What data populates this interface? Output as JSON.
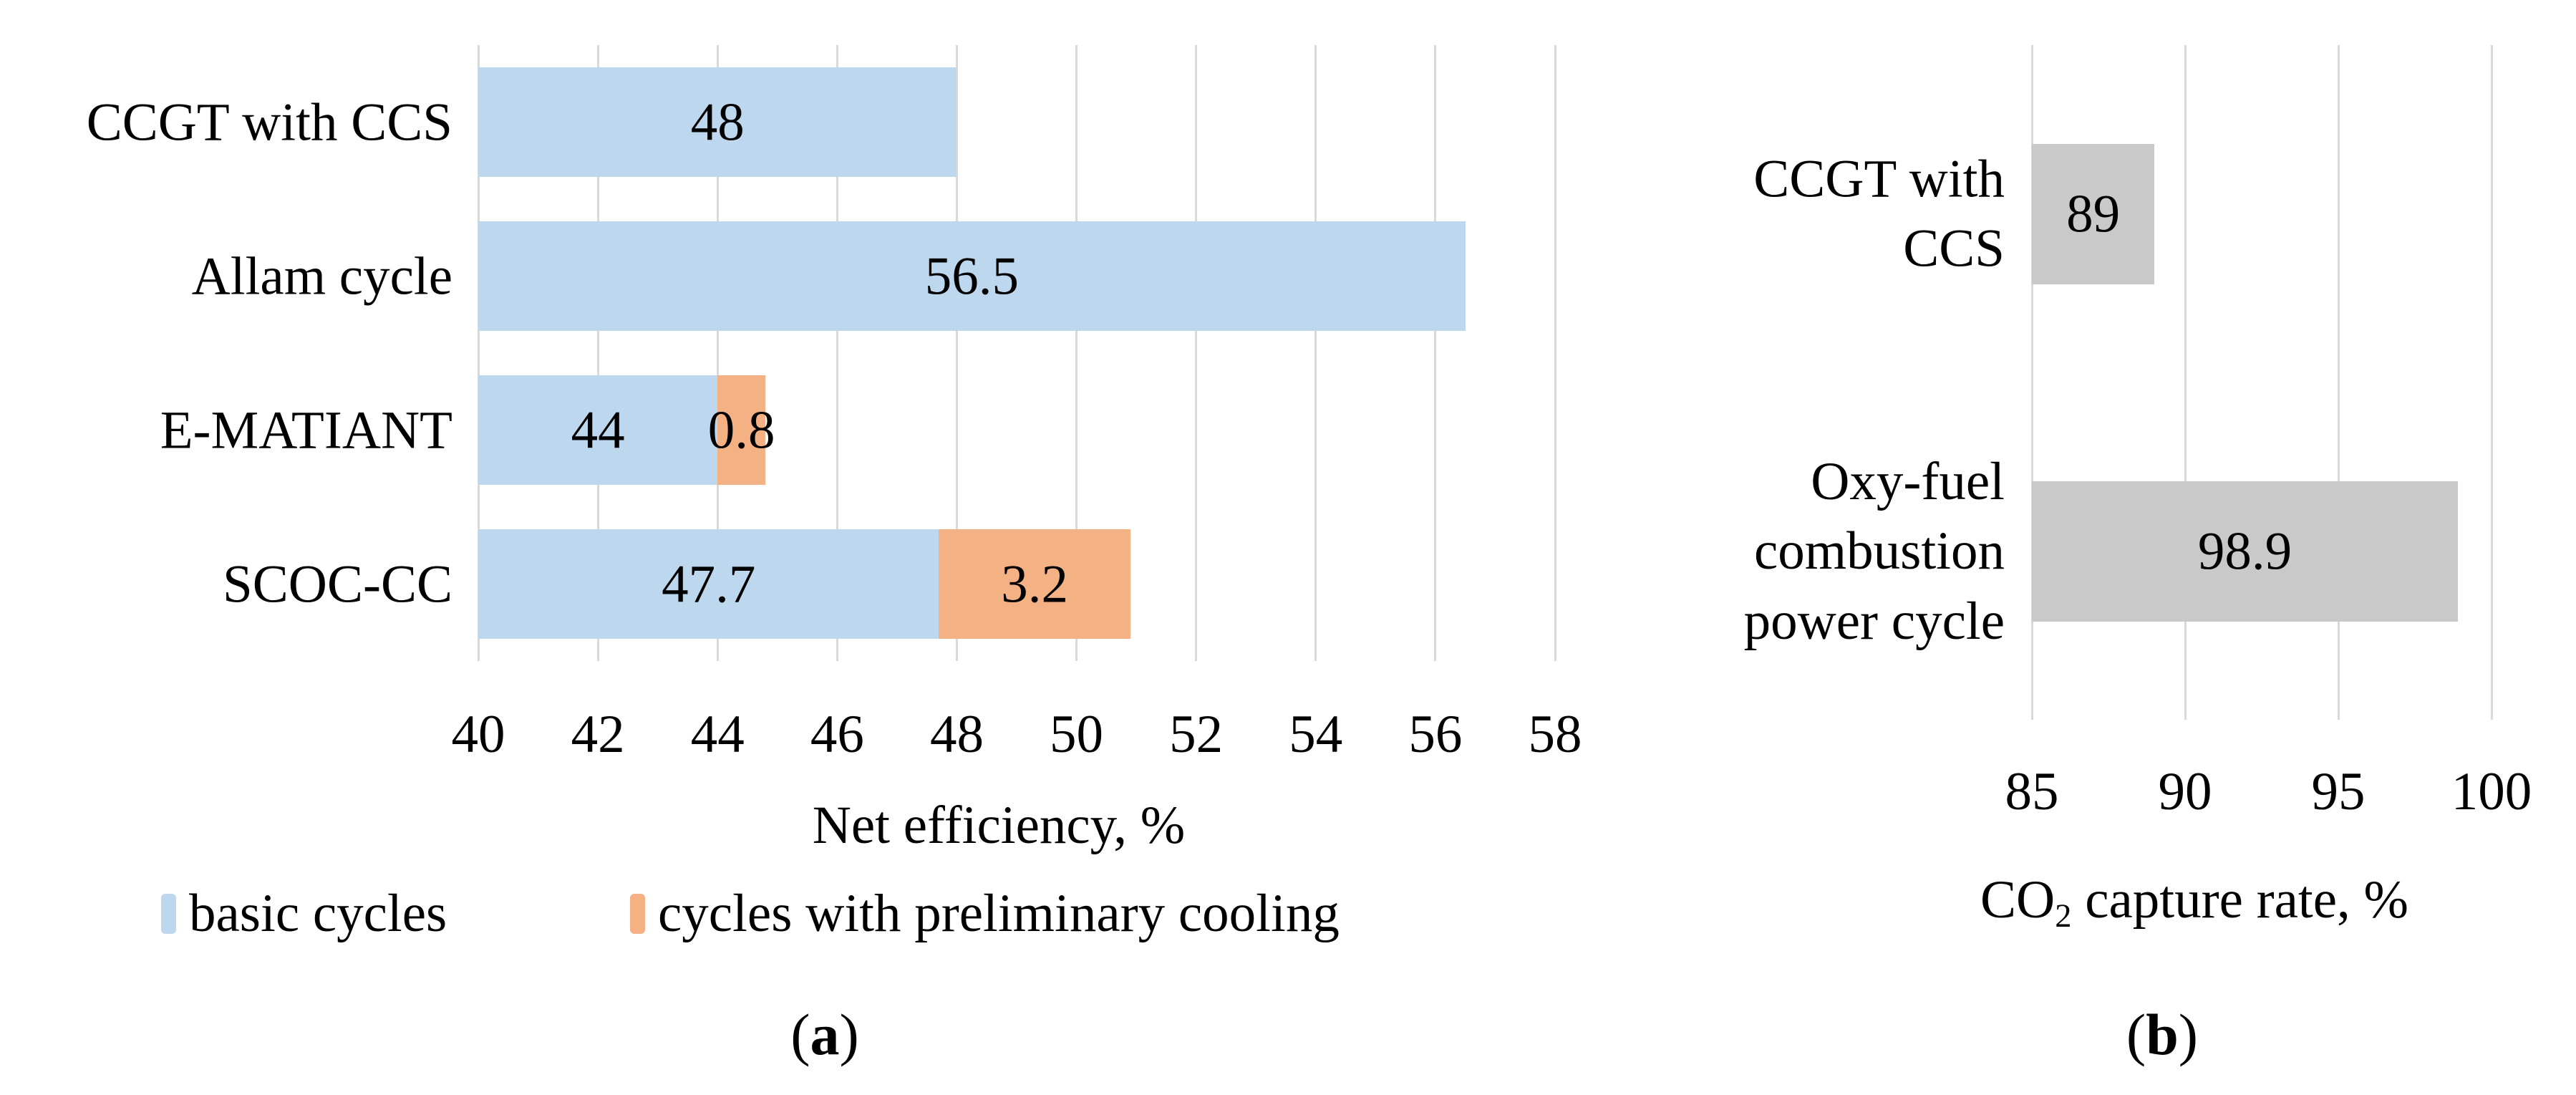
{
  "chart_data": [
    {
      "type": "bar",
      "orientation": "horizontal",
      "stacked": true,
      "categories": [
        "CCGT with CCS",
        "Allam cycle",
        "E-MATIANT",
        "SCOC-CC"
      ],
      "categories_display": [
        [
          "CCGT with CCS"
        ],
        [
          "Allam cycle"
        ],
        [
          "E-MATIANT"
        ],
        [
          "SCOC-CC"
        ]
      ],
      "series": [
        {
          "name": "basic cycles",
          "color": "#BDD7EE",
          "values": [
            48,
            56.5,
            44,
            47.7
          ]
        },
        {
          "name": "cycles with preliminary cooling",
          "color": "#F4B183",
          "values": [
            0,
            0,
            0.8,
            3.2
          ]
        }
      ],
      "xlabel": "Net efficiency, %",
      "xlim": [
        40,
        58
      ],
      "xticks": [
        40,
        42,
        44,
        46,
        48,
        50,
        52,
        54,
        56,
        58
      ],
      "grid": true,
      "legend_position": "bottom",
      "caption": {
        "open": "(",
        "letter": "a",
        "close": ")"
      }
    },
    {
      "type": "bar",
      "orientation": "horizontal",
      "stacked": false,
      "categories": [
        "CCGT with CCS",
        "Oxy-fuel combustion power cycle"
      ],
      "categories_display": [
        [
          "CCGT with",
          "CCS"
        ],
        [
          "Oxy-fuel",
          "combustion",
          "power cycle"
        ]
      ],
      "series": [
        {
          "name": "CO2 capture rate",
          "color": "#C9C9C9",
          "values": [
            89,
            98.9
          ]
        }
      ],
      "xlabel": "CO2 capture rate, %",
      "xlabel_parts": {
        "base": "CO",
        "sub": "2",
        "rest": " capture rate, %"
      },
      "xlim": [
        85,
        100
      ],
      "xticks": [
        85,
        90,
        95,
        100
      ],
      "grid": true,
      "legend_position": "none",
      "caption": {
        "open": "(",
        "letter": "b",
        "close": ")"
      }
    }
  ],
  "colors": {
    "gridline": "#D9D9D9",
    "background": "#FFFFFF",
    "text": "#000000"
  }
}
